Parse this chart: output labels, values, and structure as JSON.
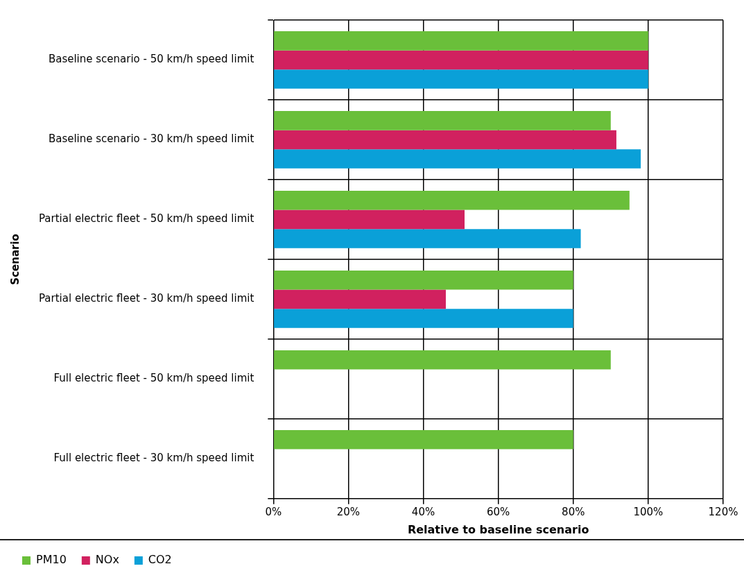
{
  "chart_data": {
    "type": "bar",
    "orientation": "horizontal",
    "categories": [
      "Baseline scenario - 50 km/h speed limit",
      "Baseline scenario - 30 km/h speed limit",
      "Partial electric fleet - 50 km/h speed limit",
      "Partial electric fleet - 30 km/h speed limit",
      "Full electric fleet - 50 km/h speed limit",
      "Full electric fleet - 30 km/h speed limit"
    ],
    "series": [
      {
        "name": "PM10",
        "color": "#6abf3a",
        "values": [
          100,
          90,
          95,
          80,
          90,
          80
        ]
      },
      {
        "name": "NOx",
        "color": "#d1215f",
        "values": [
          100,
          91.5,
          51,
          46,
          null,
          null
        ]
      },
      {
        "name": "CO2",
        "color": "#0aa0d8",
        "values": [
          100,
          98,
          82,
          80,
          null,
          null
        ]
      }
    ],
    "xlim": [
      0,
      120
    ],
    "xticks": [
      {
        "value": 0,
        "label": "0%"
      },
      {
        "value": 20,
        "label": "20%"
      },
      {
        "value": 40,
        "label": "40%"
      },
      {
        "value": 60,
        "label": "60%"
      },
      {
        "value": 80,
        "label": "80%"
      },
      {
        "value": 100,
        "label": "100%"
      },
      {
        "value": 120,
        "label": "120%"
      }
    ],
    "xlabel": "Relative to baseline scenario",
    "ylabel": "Scenario",
    "grid": true,
    "legend": "bottom left"
  }
}
